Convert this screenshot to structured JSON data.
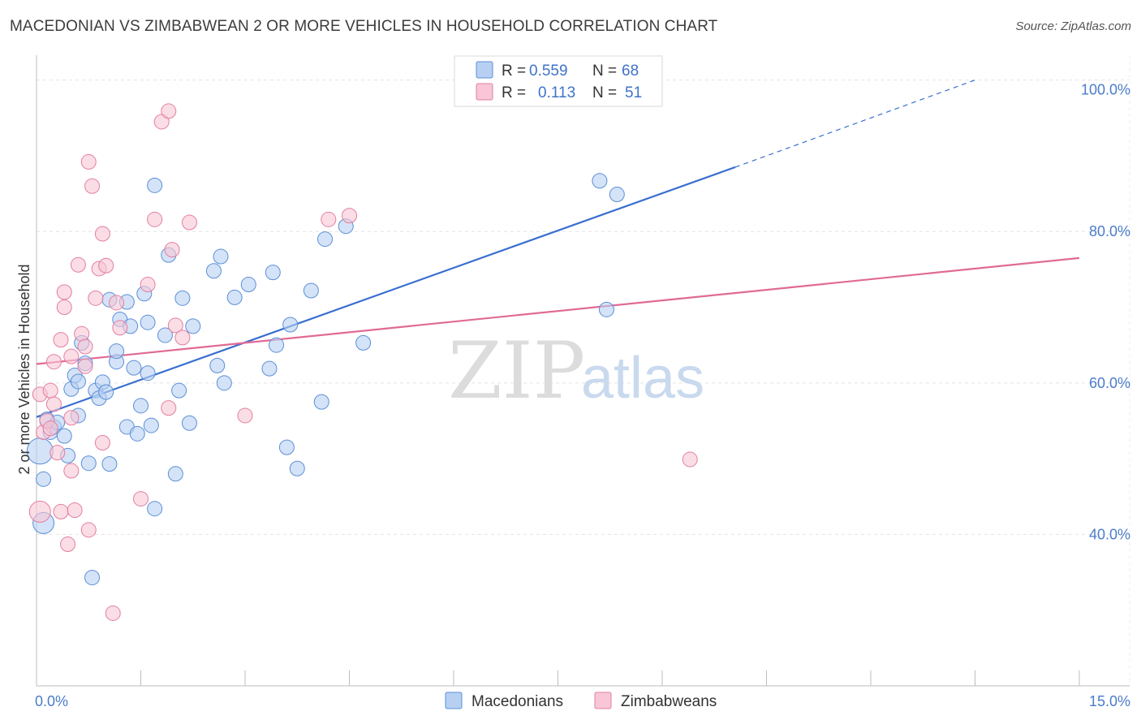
{
  "title": "MACEDONIAN VS ZIMBABWEAN 2 OR MORE VEHICLES IN HOUSEHOLD CORRELATION CHART",
  "source": "Source: ZipAtlas.com",
  "watermark": {
    "zip": "ZIP",
    "atlas": "atlas"
  },
  "colors": {
    "blue_fill": "#b7d0f2",
    "blue_stroke": "#5b8fd8",
    "blue_line": "#3a6fd0",
    "pink_fill": "#f8c6d6",
    "pink_stroke": "#e27fa0",
    "pink_line": "#e06a95",
    "grid": "#e4e4e4",
    "axis": "#bdbdbd",
    "label": "#4a7cc9"
  },
  "legend": {
    "rows": [
      {
        "r_label": "R =",
        "r_value": "0.559",
        "n_label": "N =",
        "n_value": "68"
      },
      {
        "r_label": "R =",
        "r_value": "0.113",
        "n_label": "N =",
        "n_value": "51"
      }
    ]
  },
  "chart_data": {
    "type": "scatter",
    "title": "MACEDONIAN VS ZIMBABWEAN 2 OR MORE VEHICLES IN HOUSEHOLD CORRELATION CHART",
    "xlabel": "",
    "ylabel": "2 or more Vehicles in Household",
    "xlim": [
      0,
      15
    ],
    "ylim": [
      20,
      102
    ],
    "x_tick_labels": [
      {
        "value": 0,
        "label": "0.0%"
      },
      {
        "value": 15,
        "label": "15.0%"
      }
    ],
    "y_ticks": [
      {
        "value": 40,
        "label": "40.0%"
      },
      {
        "value": 60,
        "label": "60.0%"
      },
      {
        "value": 80,
        "label": "80.0%"
      },
      {
        "value": 100,
        "label": "100.0%"
      }
    ],
    "legend_bottom": [
      "Macedonians",
      "Zimbabweans"
    ],
    "series": [
      {
        "name": "Macedonians",
        "color": "blue",
        "trend": {
          "x0": 0,
          "y0": 55.5,
          "x1": 10.05,
          "y1": 88.5,
          "dashed_to_x": 13.5,
          "dashed_to_y": 100.0
        },
        "points": [
          [
            0.05,
            51.0,
            3
          ],
          [
            0.1,
            47.3,
            1
          ],
          [
            0.1,
            41.5,
            2
          ],
          [
            0.15,
            55.2,
            1
          ],
          [
            0.2,
            53.5,
            1
          ],
          [
            0.25,
            54.2,
            1
          ],
          [
            0.3,
            54.8,
            1
          ],
          [
            0.4,
            53.0,
            1
          ],
          [
            0.45,
            50.4,
            1
          ],
          [
            0.5,
            59.2,
            1
          ],
          [
            0.55,
            61.0,
            1
          ],
          [
            0.6,
            60.2,
            1
          ],
          [
            0.6,
            55.7,
            1
          ],
          [
            0.65,
            65.3,
            1
          ],
          [
            0.7,
            62.6,
            1
          ],
          [
            0.75,
            49.4,
            1
          ],
          [
            0.8,
            34.3,
            1
          ],
          [
            0.85,
            59.0,
            1
          ],
          [
            0.9,
            58.0,
            1
          ],
          [
            0.95,
            60.1,
            1
          ],
          [
            1.0,
            58.8,
            1
          ],
          [
            1.05,
            49.3,
            1
          ],
          [
            1.05,
            71.0,
            1
          ],
          [
            1.15,
            62.8,
            1
          ],
          [
            1.15,
            64.2,
            1
          ],
          [
            1.2,
            68.4,
            1
          ],
          [
            1.3,
            70.7,
            1
          ],
          [
            1.3,
            54.2,
            1
          ],
          [
            1.35,
            67.5,
            1
          ],
          [
            1.4,
            62.0,
            1
          ],
          [
            1.45,
            53.3,
            1
          ],
          [
            1.5,
            57.0,
            1
          ],
          [
            1.55,
            71.8,
            1
          ],
          [
            1.6,
            61.3,
            1
          ],
          [
            1.6,
            68.0,
            1
          ],
          [
            1.65,
            54.4,
            1
          ],
          [
            1.7,
            43.4,
            1
          ],
          [
            1.7,
            86.1,
            1
          ],
          [
            1.85,
            66.3,
            1
          ],
          [
            1.9,
            76.9,
            1
          ],
          [
            2.0,
            48.0,
            1
          ],
          [
            2.05,
            59.0,
            1
          ],
          [
            2.1,
            71.2,
            1
          ],
          [
            2.2,
            54.7,
            1
          ],
          [
            2.25,
            67.5,
            1
          ],
          [
            2.55,
            74.8,
            1
          ],
          [
            2.6,
            62.3,
            1
          ],
          [
            2.65,
            76.7,
            1
          ],
          [
            2.7,
            60.0,
            1
          ],
          [
            2.85,
            71.3,
            1
          ],
          [
            3.05,
            73.0,
            1
          ],
          [
            3.35,
            61.9,
            1
          ],
          [
            3.4,
            74.6,
            1
          ],
          [
            3.45,
            65.0,
            1
          ],
          [
            3.6,
            51.5,
            1
          ],
          [
            3.65,
            67.7,
            1
          ],
          [
            3.75,
            48.7,
            1
          ],
          [
            3.95,
            72.2,
            1
          ],
          [
            4.1,
            57.5,
            1
          ],
          [
            4.15,
            79.0,
            1
          ],
          [
            4.45,
            80.7,
            1
          ],
          [
            4.7,
            65.3,
            1
          ],
          [
            8.1,
            86.7,
            1
          ],
          [
            8.2,
            69.7,
            1
          ],
          [
            8.35,
            84.9,
            1
          ]
        ]
      },
      {
        "name": "Zimbabweans",
        "color": "pink",
        "trend": {
          "x0": 0,
          "y0": 62.5,
          "x1": 15,
          "y1": 76.5
        },
        "points": [
          [
            0.05,
            43.0,
            2
          ],
          [
            0.05,
            58.5,
            1
          ],
          [
            0.1,
            53.5,
            1
          ],
          [
            0.15,
            55.0,
            1
          ],
          [
            0.2,
            59.0,
            1
          ],
          [
            0.2,
            54.0,
            1
          ],
          [
            0.25,
            62.8,
            1
          ],
          [
            0.25,
            57.2,
            1
          ],
          [
            0.3,
            50.8,
            1
          ],
          [
            0.35,
            43.0,
            1
          ],
          [
            0.35,
            65.7,
            1
          ],
          [
            0.4,
            72.0,
            1
          ],
          [
            0.4,
            70.0,
            1
          ],
          [
            0.45,
            38.7,
            1
          ],
          [
            0.5,
            48.4,
            1
          ],
          [
            0.5,
            63.5,
            1
          ],
          [
            0.5,
            55.4,
            1
          ],
          [
            0.55,
            43.2,
            1
          ],
          [
            0.6,
            75.6,
            1
          ],
          [
            0.65,
            66.5,
            1
          ],
          [
            0.7,
            64.8,
            1
          ],
          [
            0.7,
            62.2,
            1
          ],
          [
            0.75,
            40.6,
            1
          ],
          [
            0.75,
            89.2,
            1
          ],
          [
            0.8,
            86.0,
            1
          ],
          [
            0.85,
            71.2,
            1
          ],
          [
            0.9,
            75.1,
            1
          ],
          [
            0.95,
            79.7,
            1
          ],
          [
            0.95,
            52.1,
            1
          ],
          [
            1.0,
            75.5,
            1
          ],
          [
            1.1,
            29.6,
            1
          ],
          [
            1.15,
            70.6,
            1
          ],
          [
            1.2,
            67.3,
            1
          ],
          [
            1.5,
            44.7,
            1
          ],
          [
            1.6,
            73.0,
            1
          ],
          [
            1.7,
            81.6,
            1
          ],
          [
            1.8,
            94.5,
            1
          ],
          [
            1.9,
            95.9,
            1
          ],
          [
            1.9,
            56.7,
            1
          ],
          [
            1.95,
            77.6,
            1
          ],
          [
            2.0,
            67.6,
            1
          ],
          [
            2.1,
            66.0,
            1
          ],
          [
            2.2,
            81.2,
            1
          ],
          [
            3.0,
            55.7,
            1
          ],
          [
            4.2,
            81.6,
            1
          ],
          [
            4.5,
            82.1,
            1
          ],
          [
            9.4,
            49.9,
            1
          ]
        ]
      }
    ]
  }
}
